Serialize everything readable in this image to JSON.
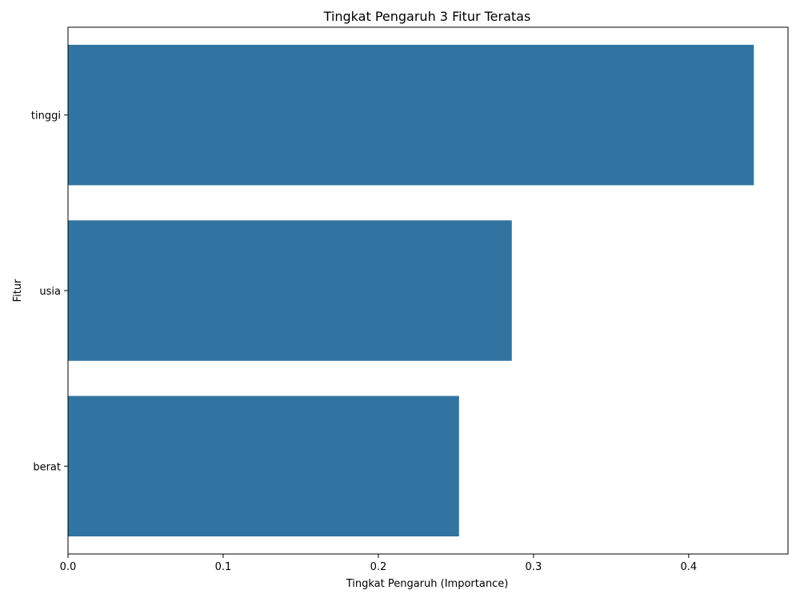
{
  "chart_data": {
    "type": "bar",
    "orientation": "horizontal",
    "title": "Tingkat Pengaruh 3 Fitur Teratas",
    "xlabel": "Tingkat Pengaruh (Importance)",
    "ylabel": "Fitur",
    "categories": [
      "tinggi",
      "usia",
      "berat"
    ],
    "values": [
      0.442,
      0.286,
      0.252
    ],
    "xlim": [
      0,
      0.464
    ],
    "xticks": [
      0.0,
      0.1,
      0.2,
      0.3,
      0.4
    ],
    "xtick_labels": [
      "0.0",
      "0.1",
      "0.2",
      "0.3",
      "0.4"
    ],
    "grid": false,
    "bar_color": "#3274a1"
  }
}
